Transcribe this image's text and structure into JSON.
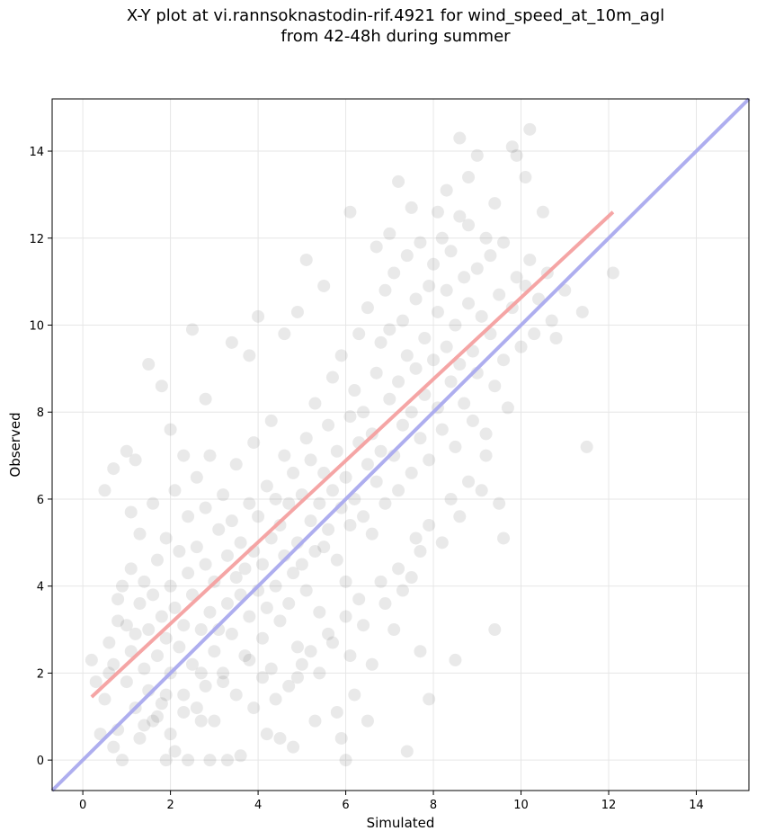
{
  "title_lines": [
    "X-Y plot at vi.rannsoknastodin-rif.4921 for wind_speed_at_10m_agl",
    "from 42-48h during summer"
  ],
  "chart_data": {
    "type": "scatter",
    "title": "X-Y plot at vi.rannsoknastodin-rif.4921 for wind_speed_at_10m_agl from 42-48h during summer",
    "xlabel": "Simulated",
    "ylabel": "Observed",
    "xlim": [
      -0.7,
      15.2
    ],
    "ylim": [
      -0.7,
      15.2
    ],
    "xticks": [
      0,
      2,
      4,
      6,
      8,
      10,
      12,
      14
    ],
    "yticks": [
      0,
      2,
      4,
      6,
      8,
      10,
      12,
      14
    ],
    "grid": true,
    "point_color": "#555555",
    "one_to_one_line": {
      "color": "#aaaaee",
      "x": [
        -0.7,
        15.2
      ],
      "y": [
        -0.7,
        15.2
      ]
    },
    "regression_line": {
      "color": "#f4a0a0",
      "x": [
        0.2,
        12.1
      ],
      "y": [
        1.45,
        12.6
      ]
    },
    "points": [
      [
        0.2,
        2.3
      ],
      [
        0.3,
        1.8
      ],
      [
        0.4,
        0.6
      ],
      [
        0.5,
        6.2
      ],
      [
        0.6,
        2.7
      ],
      [
        0.7,
        6.7
      ],
      [
        0.7,
        0.3
      ],
      [
        0.8,
        3.7
      ],
      [
        0.9,
        0.0
      ],
      [
        1.0,
        7.1
      ],
      [
        1.1,
        5.7
      ],
      [
        1.2,
        6.9
      ],
      [
        1.3,
        0.5
      ],
      [
        1.5,
        9.1
      ],
      [
        1.6,
        0.9
      ],
      [
        1.8,
        8.6
      ],
      [
        1.9,
        0.0
      ],
      [
        2.0,
        7.6
      ],
      [
        2.1,
        0.2
      ],
      [
        2.3,
        7.0
      ],
      [
        2.4,
        0.0
      ],
      [
        2.5,
        9.9
      ],
      [
        2.7,
        0.9
      ],
      [
        2.8,
        8.3
      ],
      [
        2.9,
        0.0
      ],
      [
        3.3,
        0.0
      ],
      [
        3.4,
        9.6
      ],
      [
        3.6,
        0.1
      ],
      [
        3.8,
        9.3
      ],
      [
        4.0,
        10.2
      ],
      [
        4.2,
        0.6
      ],
      [
        4.5,
        0.5
      ],
      [
        4.6,
        9.8
      ],
      [
        4.8,
        0.3
      ],
      [
        4.9,
        10.3
      ],
      [
        5.1,
        11.5
      ],
      [
        5.3,
        0.9
      ],
      [
        5.5,
        10.9
      ],
      [
        5.8,
        1.1
      ],
      [
        5.9,
        0.5
      ],
      [
        6.0,
        0.0
      ],
      [
        6.1,
        12.6
      ],
      [
        6.2,
        1.5
      ],
      [
        6.5,
        0.9
      ],
      [
        6.7,
        11.8
      ],
      [
        7.0,
        12.1
      ],
      [
        7.2,
        13.3
      ],
      [
        7.4,
        0.2
      ],
      [
        7.5,
        12.7
      ],
      [
        7.7,
        2.5
      ],
      [
        7.9,
        1.4
      ],
      [
        8.1,
        12.6
      ],
      [
        8.3,
        13.1
      ],
      [
        8.5,
        2.3
      ],
      [
        8.6,
        14.3
      ],
      [
        8.8,
        13.4
      ],
      [
        9.0,
        13.9
      ],
      [
        9.4,
        3.0
      ],
      [
        9.4,
        12.8
      ],
      [
        9.6,
        5.1
      ],
      [
        9.8,
        14.1
      ],
      [
        9.9,
        13.9
      ],
      [
        10.1,
        13.4
      ],
      [
        10.2,
        14.5
      ],
      [
        10.5,
        12.6
      ],
      [
        10.8,
        9.7
      ],
      [
        11.4,
        10.3
      ],
      [
        11.5,
        7.2
      ],
      [
        12.1,
        11.2
      ],
      [
        8.6,
        12.5
      ],
      [
        0.5,
        1.4
      ],
      [
        0.6,
        2.0
      ],
      [
        0.7,
        2.2
      ],
      [
        0.8,
        3.2
      ],
      [
        0.9,
        4.0
      ],
      [
        1.0,
        1.8
      ],
      [
        1.0,
        3.1
      ],
      [
        1.1,
        2.5
      ],
      [
        1.1,
        4.4
      ],
      [
        1.2,
        2.9
      ],
      [
        1.2,
        1.2
      ],
      [
        1.3,
        3.6
      ],
      [
        1.3,
        5.2
      ],
      [
        1.4,
        2.1
      ],
      [
        1.4,
        4.1
      ],
      [
        1.5,
        3.0
      ],
      [
        1.5,
        1.6
      ],
      [
        1.6,
        3.8
      ],
      [
        1.6,
        5.9
      ],
      [
        1.7,
        2.4
      ],
      [
        1.7,
        4.6
      ],
      [
        1.8,
        3.3
      ],
      [
        1.8,
        1.3
      ],
      [
        1.9,
        2.8
      ],
      [
        1.9,
        5.1
      ],
      [
        2.0,
        4.0
      ],
      [
        2.0,
        2.0
      ],
      [
        2.1,
        3.5
      ],
      [
        2.1,
        6.2
      ],
      [
        2.2,
        2.6
      ],
      [
        2.2,
        4.8
      ],
      [
        2.3,
        3.1
      ],
      [
        2.3,
        1.5
      ],
      [
        2.4,
        4.3
      ],
      [
        2.4,
        5.6
      ],
      [
        2.5,
        2.2
      ],
      [
        2.5,
        3.8
      ],
      [
        2.6,
        4.9
      ],
      [
        2.6,
        6.5
      ],
      [
        2.7,
        3.0
      ],
      [
        2.7,
        2.0
      ],
      [
        2.8,
        4.5
      ],
      [
        2.8,
        5.8
      ],
      [
        2.9,
        3.4
      ],
      [
        2.9,
        7.0
      ],
      [
        3.0,
        4.1
      ],
      [
        3.0,
        2.5
      ],
      [
        3.1,
        5.3
      ],
      [
        3.1,
        3.0
      ],
      [
        3.2,
        6.1
      ],
      [
        3.2,
        1.8
      ],
      [
        3.3,
        4.7
      ],
      [
        3.3,
        3.6
      ],
      [
        3.4,
        5.5
      ],
      [
        3.4,
        2.9
      ],
      [
        3.5,
        4.2
      ],
      [
        3.5,
        6.8
      ],
      [
        3.6,
        3.8
      ],
      [
        3.6,
        5.0
      ],
      [
        3.7,
        4.4
      ],
      [
        3.7,
        2.4
      ],
      [
        3.8,
        5.9
      ],
      [
        3.8,
        3.3
      ],
      [
        3.9,
        4.8
      ],
      [
        3.9,
        7.3
      ],
      [
        4.0,
        3.9
      ],
      [
        4.0,
        5.6
      ],
      [
        4.1,
        4.5
      ],
      [
        4.1,
        2.8
      ],
      [
        4.2,
        6.3
      ],
      [
        4.2,
        3.5
      ],
      [
        4.3,
        5.1
      ],
      [
        4.3,
        7.8
      ],
      [
        4.4,
        4.0
      ],
      [
        4.4,
        6.0
      ],
      [
        4.5,
        3.2
      ],
      [
        4.5,
        5.4
      ],
      [
        4.6,
        4.7
      ],
      [
        4.6,
        7.0
      ],
      [
        4.7,
        3.6
      ],
      [
        4.7,
        5.9
      ],
      [
        4.8,
        4.3
      ],
      [
        4.8,
        6.6
      ],
      [
        4.9,
        5.0
      ],
      [
        4.9,
        2.6
      ],
      [
        5.0,
        6.1
      ],
      [
        5.0,
        4.5
      ],
      [
        5.1,
        7.4
      ],
      [
        5.1,
        3.9
      ],
      [
        5.2,
        5.5
      ],
      [
        5.2,
        6.9
      ],
      [
        5.3,
        4.8
      ],
      [
        5.3,
        8.2
      ],
      [
        5.4,
        5.9
      ],
      [
        5.4,
        3.4
      ],
      [
        5.5,
        6.6
      ],
      [
        5.5,
        4.9
      ],
      [
        5.6,
        7.7
      ],
      [
        5.6,
        5.3
      ],
      [
        5.7,
        6.2
      ],
      [
        5.7,
        8.8
      ],
      [
        5.8,
        4.6
      ],
      [
        5.8,
        7.1
      ],
      [
        5.9,
        5.8
      ],
      [
        5.9,
        9.3
      ],
      [
        6.0,
        6.5
      ],
      [
        6.0,
        4.1
      ],
      [
        6.1,
        7.9
      ],
      [
        6.1,
        5.4
      ],
      [
        6.2,
        8.5
      ],
      [
        6.2,
        6.0
      ],
      [
        6.3,
        7.3
      ],
      [
        6.3,
        9.8
      ],
      [
        6.4,
        5.6
      ],
      [
        6.4,
        8.0
      ],
      [
        6.5,
        6.8
      ],
      [
        6.5,
        10.4
      ],
      [
        6.6,
        7.5
      ],
      [
        6.6,
        5.2
      ],
      [
        6.7,
        8.9
      ],
      [
        6.7,
        6.4
      ],
      [
        6.8,
        9.6
      ],
      [
        6.8,
        7.1
      ],
      [
        6.9,
        10.8
      ],
      [
        6.9,
        5.9
      ],
      [
        7.0,
        8.3
      ],
      [
        7.0,
        9.9
      ],
      [
        7.1,
        7.0
      ],
      [
        7.1,
        11.2
      ],
      [
        7.2,
        8.7
      ],
      [
        7.2,
        6.2
      ],
      [
        7.3,
        10.1
      ],
      [
        7.3,
        7.7
      ],
      [
        7.4,
        9.3
      ],
      [
        7.4,
        11.6
      ],
      [
        7.5,
        8.0
      ],
      [
        7.5,
        6.6
      ],
      [
        7.6,
        10.6
      ],
      [
        7.6,
        9.0
      ],
      [
        7.7,
        11.9
      ],
      [
        7.7,
        7.4
      ],
      [
        7.8,
        9.7
      ],
      [
        7.8,
        8.4
      ],
      [
        7.9,
        10.9
      ],
      [
        7.9,
        6.9
      ],
      [
        8.0,
        9.2
      ],
      [
        8.0,
        11.4
      ],
      [
        8.1,
        8.1
      ],
      [
        8.1,
        10.3
      ],
      [
        8.2,
        7.6
      ],
      [
        8.2,
        12.0
      ],
      [
        8.3,
        9.5
      ],
      [
        8.3,
        10.8
      ],
      [
        8.4,
        8.7
      ],
      [
        8.4,
        11.7
      ],
      [
        8.5,
        7.2
      ],
      [
        8.5,
        10.0
      ],
      [
        8.6,
        9.1
      ],
      [
        8.7,
        11.1
      ],
      [
        8.7,
        8.2
      ],
      [
        8.8,
        10.5
      ],
      [
        8.8,
        12.3
      ],
      [
        8.9,
        9.4
      ],
      [
        8.9,
        7.8
      ],
      [
        9.0,
        11.3
      ],
      [
        9.0,
        8.9
      ],
      [
        9.1,
        10.2
      ],
      [
        9.2,
        12.0
      ],
      [
        9.2,
        7.5
      ],
      [
        9.3,
        9.8
      ],
      [
        9.3,
        11.6
      ],
      [
        9.4,
        8.6
      ],
      [
        9.5,
        10.7
      ],
      [
        9.6,
        9.2
      ],
      [
        9.6,
        11.9
      ],
      [
        9.7,
        8.1
      ],
      [
        9.8,
        10.4
      ],
      [
        9.9,
        11.1
      ],
      [
        10.0,
        9.5
      ],
      [
        10.1,
        10.9
      ],
      [
        10.2,
        11.5
      ],
      [
        10.3,
        9.8
      ],
      [
        10.4,
        10.6
      ],
      [
        10.6,
        11.2
      ],
      [
        10.7,
        10.1
      ],
      [
        11.0,
        10.8
      ],
      [
        8.8,
        6.4
      ],
      [
        9.1,
        6.2
      ],
      [
        9.2,
        7.0
      ],
      [
        9.5,
        5.9
      ],
      [
        0.8,
        0.7
      ],
      [
        1.4,
        0.8
      ],
      [
        1.7,
        1.0
      ],
      [
        2.0,
        0.6
      ],
      [
        2.6,
        1.2
      ],
      [
        3.0,
        0.9
      ],
      [
        3.5,
        1.5
      ],
      [
        3.9,
        1.2
      ],
      [
        4.1,
        1.9
      ],
      [
        4.4,
        1.4
      ],
      [
        4.7,
        1.7
      ],
      [
        5.0,
        2.2
      ],
      [
        5.4,
        2.0
      ],
      [
        5.7,
        2.7
      ],
      [
        6.1,
        2.4
      ],
      [
        6.4,
        3.1
      ],
      [
        6.6,
        2.2
      ],
      [
        6.9,
        3.6
      ],
      [
        7.1,
        3.0
      ],
      [
        7.3,
        3.9
      ],
      [
        7.5,
        4.2
      ],
      [
        7.7,
        4.8
      ],
      [
        7.9,
        5.4
      ],
      [
        8.2,
        5.0
      ],
      [
        8.4,
        6.0
      ],
      [
        8.6,
        5.6
      ],
      [
        7.6,
        5.1
      ],
      [
        7.2,
        4.4
      ],
      [
        6.8,
        4.1
      ],
      [
        6.3,
        3.7
      ],
      [
        6.0,
        3.3
      ],
      [
        5.6,
        2.9
      ],
      [
        5.2,
        2.5
      ],
      [
        4.9,
        1.9
      ],
      [
        4.3,
        2.1
      ],
      [
        3.8,
        2.3
      ],
      [
        3.2,
        2.0
      ],
      [
        2.8,
        1.7
      ],
      [
        2.3,
        1.1
      ],
      [
        1.9,
        1.5
      ]
    ]
  }
}
